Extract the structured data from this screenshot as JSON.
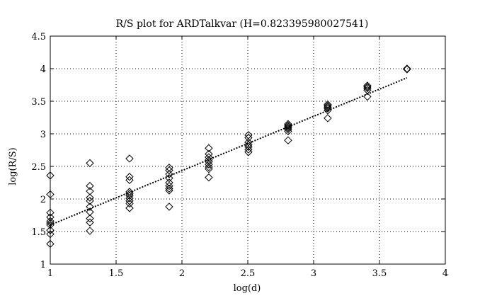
{
  "chart_data": {
    "type": "scatter",
    "title": "R/S plot for ARDTalkvar (H=0.823395980027541)",
    "xlabel": "log(d)",
    "ylabel": "log(R/S)",
    "xlim": [
      1,
      4
    ],
    "ylim": [
      1,
      4.5
    ],
    "xticks": [
      1,
      1.5,
      2,
      2.5,
      3,
      3.5,
      4
    ],
    "xtick_labels": [
      "1",
      "1.5",
      "2",
      "2.5",
      "3",
      "3.5",
      "4"
    ],
    "yticks": [
      1,
      1.5,
      2,
      2.5,
      3,
      3.5,
      4,
      4.5
    ],
    "ytick_labels": [
      "1",
      "1.5",
      "2",
      "2.5",
      "3",
      "3.5",
      "4",
      "4.5"
    ],
    "grid": true,
    "marker": "diamond",
    "points": [
      [
        1.0,
        2.36
      ],
      [
        1.0,
        2.07
      ],
      [
        1.0,
        1.79
      ],
      [
        1.0,
        1.72
      ],
      [
        1.0,
        1.66
      ],
      [
        1.0,
        1.63
      ],
      [
        1.0,
        1.6
      ],
      [
        1.0,
        1.52
      ],
      [
        1.0,
        1.46
      ],
      [
        1.0,
        1.31
      ],
      [
        1.301,
        2.55
      ],
      [
        1.301,
        2.2
      ],
      [
        1.301,
        2.12
      ],
      [
        1.301,
        2.02
      ],
      [
        1.301,
        1.97
      ],
      [
        1.301,
        1.88
      ],
      [
        1.301,
        1.8
      ],
      [
        1.301,
        1.7
      ],
      [
        1.301,
        1.64
      ],
      [
        1.301,
        1.51
      ],
      [
        1.602,
        2.62
      ],
      [
        1.602,
        2.34
      ],
      [
        1.602,
        2.29
      ],
      [
        1.602,
        2.11
      ],
      [
        1.602,
        2.08
      ],
      [
        1.602,
        2.05
      ],
      [
        1.602,
        2.01
      ],
      [
        1.602,
        1.97
      ],
      [
        1.602,
        1.93
      ],
      [
        1.602,
        1.86
      ],
      [
        1.903,
        2.48
      ],
      [
        1.903,
        2.44
      ],
      [
        1.903,
        2.38
      ],
      [
        1.903,
        2.32
      ],
      [
        1.903,
        2.25
      ],
      [
        1.903,
        2.2
      ],
      [
        1.903,
        2.16
      ],
      [
        1.903,
        2.13
      ],
      [
        1.903,
        1.88
      ],
      [
        2.204,
        2.78
      ],
      [
        2.204,
        2.69
      ],
      [
        2.204,
        2.64
      ],
      [
        2.204,
        2.6
      ],
      [
        2.204,
        2.57
      ],
      [
        2.204,
        2.53
      ],
      [
        2.204,
        2.49
      ],
      [
        2.204,
        2.46
      ],
      [
        2.204,
        2.33
      ],
      [
        2.505,
        2.98
      ],
      [
        2.505,
        2.94
      ],
      [
        2.505,
        2.87
      ],
      [
        2.505,
        2.83
      ],
      [
        2.505,
        2.8
      ],
      [
        2.505,
        2.76
      ],
      [
        2.505,
        2.72
      ],
      [
        2.806,
        3.15
      ],
      [
        2.806,
        3.13
      ],
      [
        2.806,
        3.11
      ],
      [
        2.806,
        3.09
      ],
      [
        2.806,
        3.07
      ],
      [
        2.806,
        3.04
      ],
      [
        2.806,
        2.9
      ],
      [
        3.107,
        3.45
      ],
      [
        3.107,
        3.43
      ],
      [
        3.107,
        3.41
      ],
      [
        3.107,
        3.39
      ],
      [
        3.107,
        3.36
      ],
      [
        3.107,
        3.24
      ],
      [
        3.408,
        3.74
      ],
      [
        3.408,
        3.72
      ],
      [
        3.408,
        3.7
      ],
      [
        3.408,
        3.67
      ],
      [
        3.408,
        3.57
      ],
      [
        3.709,
        4.0
      ],
      [
        3.709,
        3.99
      ]
    ],
    "fit_line": {
      "style": "dotted",
      "x": [
        1.0,
        3.709
      ],
      "y": [
        1.6,
        3.86
      ]
    }
  }
}
